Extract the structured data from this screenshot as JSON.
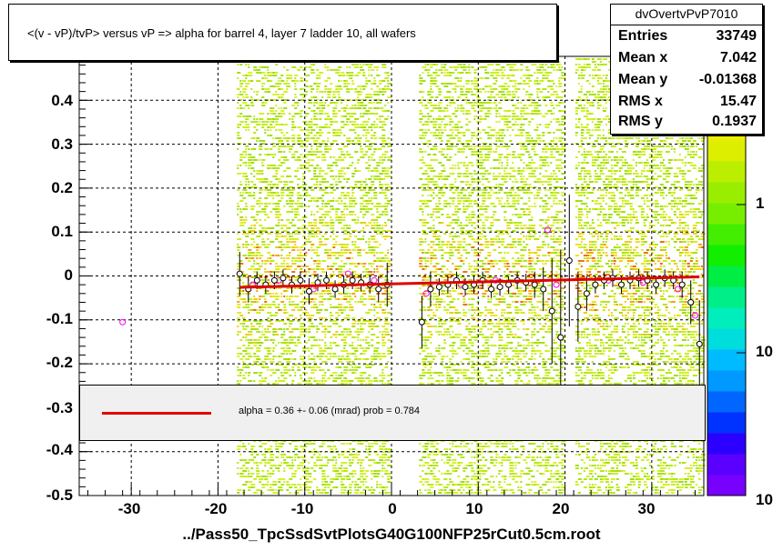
{
  "title": "<(v - vP)/tvP>  versus   vP => alpha for barrel 4, layer 7 ladder 10, all wafers",
  "stats": {
    "name": "dvOvertvPvP7010",
    "rows": [
      {
        "key": "Entries",
        "value": "33749"
      },
      {
        "key": "Mean x",
        "value": "7.042"
      },
      {
        "key": "Mean y",
        "value": "-0.01368"
      },
      {
        "key": "RMS x",
        "value": "15.47"
      },
      {
        "key": "RMS y",
        "value": "0.1937"
      }
    ]
  },
  "fit": {
    "text": "alpha =    0.36 +-  0.06 (mrad) prob = 0.784",
    "line_color": "#e00000"
  },
  "footer": "../Pass50_TpcSsdSvtPlotsG40G100NFP25rCut0.5cm.root",
  "y_ticks": [
    "0.4",
    "0.3",
    "0.2",
    "0.1",
    "0",
    "-0.1",
    "-0.2",
    "-0.3",
    "-0.4",
    "-0.5"
  ],
  "x_ticks": [
    "-30",
    "-20",
    "-10",
    "0",
    "10",
    "20",
    "30"
  ],
  "z_ticks": [
    "1",
    "10",
    "10"
  ],
  "chart_data": {
    "type": "scatter",
    "xlim": [
      -36,
      36
    ],
    "ylim": [
      -0.5,
      0.5
    ],
    "grid": true,
    "hist2d_bands": [
      [
        -17.5,
        -0.5
      ],
      [
        3.5,
        19.5
      ],
      [
        21.5,
        35.5
      ]
    ],
    "profile_black": {
      "x": [
        -17.5,
        -16.5,
        -15.5,
        -14.5,
        -13.5,
        -12.5,
        -11.5,
        -10.5,
        -9.5,
        -8.5,
        -7.5,
        -6.5,
        -5.5,
        -4.5,
        -3.5,
        -2.5,
        -1.5,
        -0.5,
        3.5,
        4.5,
        5.5,
        6.5,
        7.5,
        8.5,
        9.5,
        10.5,
        11.5,
        12.5,
        13.5,
        14.5,
        15.5,
        16.5,
        17.5,
        18.5,
        19.5,
        20.5,
        21.5,
        22.5,
        23.5,
        24.5,
        25.5,
        26.5,
        27.5,
        28.5,
        29.5,
        30.5,
        31.5,
        32.5,
        33.5,
        34.5,
        35.5
      ],
      "y": [
        0.005,
        -0.03,
        -0.01,
        -0.02,
        -0.01,
        -0.005,
        -0.02,
        -0.01,
        -0.035,
        -0.015,
        -0.01,
        -0.03,
        -0.02,
        -0.01,
        -0.015,
        -0.02,
        -0.03,
        -0.02,
        -0.105,
        -0.03,
        -0.025,
        -0.02,
        -0.01,
        -0.025,
        -0.02,
        -0.01,
        -0.03,
        -0.025,
        -0.02,
        -0.01,
        -0.015,
        -0.02,
        -0.03,
        -0.08,
        -0.14,
        0.035,
        -0.07,
        -0.04,
        -0.02,
        -0.01,
        -0.005,
        -0.02,
        -0.01,
        -0.005,
        -0.01,
        -0.02,
        -0.005,
        -0.01,
        -0.02,
        -0.06,
        -0.155
      ],
      "err": [
        0.05,
        0.03,
        0.02,
        0.02,
        0.02,
        0.02,
        0.02,
        0.02,
        0.03,
        0.02,
        0.02,
        0.02,
        0.02,
        0.02,
        0.02,
        0.02,
        0.03,
        0.05,
        0.06,
        0.04,
        0.02,
        0.02,
        0.02,
        0.02,
        0.02,
        0.02,
        0.02,
        0.02,
        0.02,
        0.02,
        0.02,
        0.03,
        0.05,
        0.12,
        0.2,
        0.15,
        0.08,
        0.04,
        0.02,
        0.02,
        0.02,
        0.02,
        0.02,
        0.02,
        0.02,
        0.02,
        0.02,
        0.02,
        0.03,
        0.05,
        0.1
      ]
    },
    "profile_magenta": {
      "x": [
        -31,
        -16,
        -13,
        -9,
        -5,
        -2,
        4,
        8,
        12,
        18,
        19,
        25,
        29,
        33,
        35
      ],
      "y": [
        -0.105,
        -0.02,
        -0.01,
        -0.03,
        0.005,
        -0.01,
        -0.04,
        -0.02,
        -0.01,
        0.105,
        -0.02,
        -0.01,
        -0.015,
        -0.03,
        -0.09
      ]
    },
    "fit_line": {
      "x": [
        -17.5,
        35.5
      ],
      "y": [
        -0.026,
        -0.002
      ]
    },
    "zaxis": {
      "type": "log",
      "labels": [
        "1",
        "10",
        "10"
      ]
    }
  }
}
